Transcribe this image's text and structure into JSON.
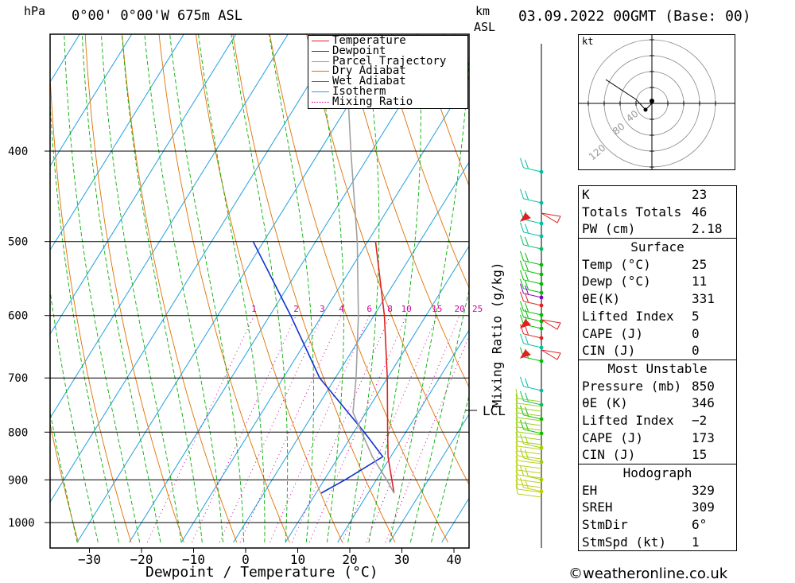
{
  "header": {
    "hpa_label": "hPa",
    "location": "0°00' 0°00'W 675m ASL",
    "km_label": "km",
    "asl_label": "ASL",
    "datetime": "03.09.2022 00GMT (Base: 00)"
  },
  "chart_data": {
    "type": "line",
    "subtype": "skew-T log-P diagram",
    "xlabel": "Dewpoint / Temperature (°C)",
    "ylabel": "hPa",
    "x_ticks": [
      -30,
      -20,
      -10,
      0,
      10,
      20,
      30,
      40
    ],
    "x_tick_labels": [
      "−30",
      "−20",
      "−10",
      "0",
      "10",
      "20",
      "30",
      "40"
    ],
    "y_ticks": [
      400,
      500,
      600,
      700,
      800,
      900,
      1000
    ],
    "pressure_range": [
      1050,
      290
    ],
    "mixing_ratio_axis_label": "Mixing Ratio (g/kg)",
    "mixing_ratio_values": [
      1,
      2,
      3,
      4,
      6,
      8,
      10,
      15,
      20,
      25
    ],
    "lcl_label": "LCL",
    "lcl_pressure": 762,
    "colors": {
      "temperature": "#e02020",
      "dewpoint": "#1030d0",
      "parcel": "#a0a0a0",
      "dry_adiabat": "#e07000",
      "wet_adiabat": "#00b000",
      "isotherm": "#20a0e0",
      "mixing_ratio": "#d000a0"
    },
    "legend": [
      {
        "name": "Temperature",
        "color": "#e02020",
        "style": "solid"
      },
      {
        "name": "Dewpoint",
        "color": "#1030d0",
        "style": "solid"
      },
      {
        "name": "Parcel Trajectory",
        "color": "#a0a0a0",
        "style": "solid"
      },
      {
        "name": "Dry Adiabat",
        "color": "#e07000",
        "style": "solid"
      },
      {
        "name": "Wet Adiabat",
        "color": "#00b000",
        "style": "solid"
      },
      {
        "name": "Isotherm",
        "color": "#20a0e0",
        "style": "solid"
      },
      {
        "name": "Mixing Ratio",
        "color": "#d000a0",
        "style": "dotted"
      }
    ],
    "series": [
      {
        "name": "Temperature",
        "points": [
          [
            930,
            25
          ],
          [
            900,
            23
          ],
          [
            850,
            19.5
          ],
          [
            800,
            16.5
          ],
          [
            700,
            10
          ],
          [
            600,
            2
          ],
          [
            500,
            -8.5
          ]
        ]
      },
      {
        "name": "Dewpoint",
        "points": [
          [
            930,
            11
          ],
          [
            900,
            14
          ],
          [
            850,
            18.5
          ],
          [
            800,
            12
          ],
          [
            700,
            -3
          ],
          [
            600,
            -16
          ],
          [
            500,
            -32
          ]
        ]
      },
      {
        "name": "Parcel Trajectory",
        "points": [
          [
            930,
            25
          ],
          [
            900,
            22
          ],
          [
            850,
            16.5
          ],
          [
            800,
            11.5
          ],
          [
            762,
            7.5
          ],
          [
            700,
            4
          ],
          [
            600,
            -3
          ],
          [
            500,
            -12
          ],
          [
            400,
            -24
          ],
          [
            300,
            -39
          ]
        ]
      }
    ]
  },
  "hodograph": {
    "unit": "kt",
    "ring_labels": [
      "40",
      "80",
      "120"
    ]
  },
  "stats": {
    "indices": [
      {
        "label": "K",
        "value": "23"
      },
      {
        "label": "Totals Totals",
        "value": "46"
      },
      {
        "label": "PW (cm)",
        "value": "2.18"
      }
    ],
    "surface": {
      "title": "Surface",
      "rows": [
        {
          "label": "Temp (°C)",
          "value": "25"
        },
        {
          "label": "Dewp (°C)",
          "value": "11"
        },
        {
          "label": "θE(K)",
          "value": "331"
        },
        {
          "label": "Lifted Index",
          "value": "5"
        },
        {
          "label": "CAPE (J)",
          "value": "0"
        },
        {
          "label": "CIN (J)",
          "value": "0"
        }
      ]
    },
    "most_unstable": {
      "title": "Most Unstable",
      "rows": [
        {
          "label": "Pressure (mb)",
          "value": "850"
        },
        {
          "label": "θE (K)",
          "value": "346"
        },
        {
          "label": "Lifted Index",
          "value": "−2"
        },
        {
          "label": "CAPE (J)",
          "value": "173"
        },
        {
          "label": "CIN (J)",
          "value": "15"
        }
      ]
    },
    "hodograph_stats": {
      "title": "Hodograph",
      "rows": [
        {
          "label": "EH",
          "value": "329"
        },
        {
          "label": "SREH",
          "value": "309"
        },
        {
          "label": "StmDir",
          "value": "6°"
        },
        {
          "label": "StmSpd (kt)",
          "value": "1"
        }
      ]
    }
  },
  "footer": {
    "copyright": "©weatheronline.co.uk"
  }
}
